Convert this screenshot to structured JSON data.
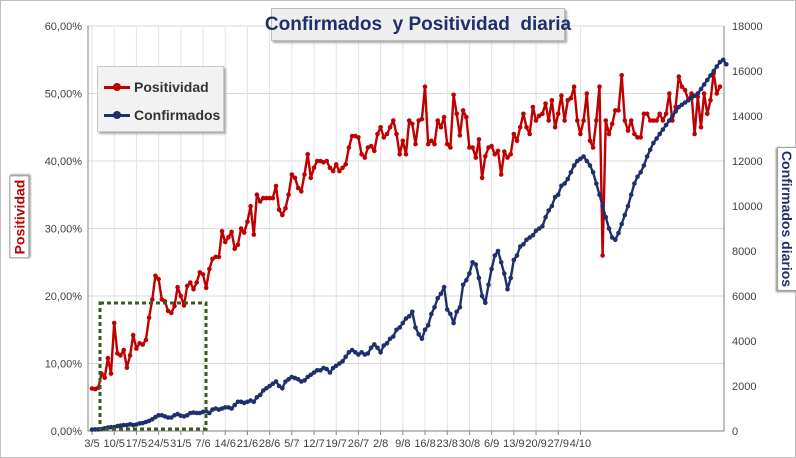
{
  "chart_data": {
    "type": "line",
    "title": "Confirmados  y Positividad  diaria",
    "ylabel_left": "Positividad",
    "ylabel_right": "Confirmados diarios",
    "x_tick_labels": [
      "3/5",
      "10/5",
      "17/5",
      "24/5",
      "31/5",
      "7/6",
      "14/6",
      "21/6",
      "28/6",
      "5/7",
      "12/7",
      "19/7",
      "26/7",
      "2/8",
      "9/8",
      "16/8",
      "23/8",
      "30/8",
      "6/9",
      "13/9",
      "20/9",
      "27/9",
      "4/10"
    ],
    "y_left_ticks": [
      "0,00%",
      "10,00%",
      "20,00%",
      "30,00%",
      "40,00%",
      "50,00%",
      "60,00%"
    ],
    "y_right_ticks": [
      "0",
      "2000",
      "4000",
      "6000",
      "8000",
      "10000",
      "12000",
      "14000",
      "16000",
      "18000"
    ],
    "ylim_left": [
      0,
      0.6
    ],
    "ylim_right": [
      0,
      18000
    ],
    "legend_position": "upper-left",
    "grid": true,
    "x_start": "3/5",
    "series": [
      {
        "name": "Positividad",
        "axis": "left",
        "color": "#c00000",
        "values": [
          0.063,
          0.062,
          0.064,
          0.085,
          0.079,
          0.108,
          0.085,
          0.16,
          0.115,
          0.112,
          0.12,
          0.094,
          0.112,
          0.142,
          0.122,
          0.13,
          0.128,
          0.135,
          0.168,
          0.195,
          0.23,
          0.225,
          0.195,
          0.192,
          0.178,
          0.175,
          0.185,
          0.213,
          0.2,
          0.186,
          0.215,
          0.22,
          0.21,
          0.22,
          0.235,
          0.232,
          0.212,
          0.24,
          0.255,
          0.258,
          0.258,
          0.296,
          0.28,
          0.287,
          0.295,
          0.27,
          0.276,
          0.3,
          0.294,
          0.31,
          0.333,
          0.291,
          0.35,
          0.34,
          0.345,
          0.345,
          0.345,
          0.345,
          0.363,
          0.328,
          0.32,
          0.33,
          0.35,
          0.38,
          0.375,
          0.36,
          0.355,
          0.38,
          0.41,
          0.375,
          0.39,
          0.4,
          0.4,
          0.398,
          0.4,
          0.39,
          0.385,
          0.395,
          0.385,
          0.39,
          0.395,
          0.42,
          0.437,
          0.437,
          0.435,
          0.41,
          0.405,
          0.42,
          0.422,
          0.415,
          0.44,
          0.45,
          0.435,
          0.44,
          0.45,
          0.46,
          0.44,
          0.41,
          0.43,
          0.41,
          0.46,
          0.455,
          0.425,
          0.46,
          0.462,
          0.51,
          0.425,
          0.43,
          0.425,
          0.46,
          0.45,
          0.465,
          0.425,
          0.42,
          0.498,
          0.47,
          0.438,
          0.475,
          0.465,
          0.42,
          0.42,
          0.405,
          0.432,
          0.375,
          0.407,
          0.42,
          0.422,
          0.41,
          0.415,
          0.38,
          0.414,
          0.405,
          0.41,
          0.44,
          0.43,
          0.45,
          0.47,
          0.45,
          0.44,
          0.48,
          0.46,
          0.467,
          0.47,
          0.485,
          0.46,
          0.49,
          0.45,
          0.47,
          0.497,
          0.46,
          0.49,
          0.493,
          0.51,
          0.46,
          0.44,
          0.46,
          0.5,
          0.43,
          0.42,
          0.46,
          0.51,
          0.26,
          0.46,
          0.44,
          0.455,
          0.475,
          0.475,
          0.527,
          0.46,
          0.445,
          0.46,
          0.44,
          0.435,
          0.435,
          0.47,
          0.47,
          0.46,
          0.46,
          0.46,
          0.47,
          0.46,
          0.47,
          0.5,
          0.46,
          0.48,
          0.525,
          0.51,
          0.505,
          0.49,
          0.5,
          0.44,
          0.495,
          0.45,
          0.5,
          0.47,
          0.49,
          0.53,
          0.5,
          0.51
        ]
      },
      {
        "name": "Confirmados",
        "axis": "right",
        "color": "#1f2f6b",
        "values": [
          60,
          70,
          70,
          90,
          120,
          150,
          170,
          170,
          220,
          240,
          260,
          260,
          300,
          260,
          290,
          340,
          350,
          400,
          450,
          520,
          620,
          700,
          700,
          650,
          600,
          600,
          700,
          750,
          680,
          650,
          700,
          800,
          820,
          800,
          800,
          850,
          880,
          800,
          950,
          1000,
          950,
          1000,
          1050,
          1050,
          1000,
          1150,
          1300,
          1300,
          1250,
          1300,
          1350,
          1300,
          1500,
          1600,
          1800,
          1900,
          2000,
          2100,
          2200,
          2000,
          1900,
          2200,
          2300,
          2400,
          2350,
          2300,
          2200,
          2250,
          2400,
          2500,
          2600,
          2700,
          2700,
          2800,
          2750,
          2600,
          2800,
          2900,
          3000,
          3100,
          3300,
          3500,
          3600,
          3500,
          3400,
          3500,
          3400,
          3450,
          3700,
          3850,
          3700,
          3500,
          3800,
          3900,
          4100,
          4200,
          4500,
          4600,
          4800,
          5000,
          5100,
          5300,
          4600,
          4300,
          4100,
          4500,
          4700,
          5200,
          5500,
          5900,
          6100,
          6400,
          5400,
          5200,
          4800,
          5300,
          5500,
          6500,
          6700,
          7000,
          7500,
          7400,
          6800,
          6000,
          5700,
          6500,
          7200,
          7800,
          8000,
          7500,
          7000,
          6300,
          6800,
          7600,
          7800,
          8200,
          8300,
          8500,
          8600,
          8700,
          8900,
          9000,
          9100,
          9500,
          9800,
          10000,
          10400,
          10500,
          10900,
          11000,
          11200,
          11500,
          11800,
          12000,
          12100,
          12200,
          12000,
          11800,
          11500,
          11000,
          10500,
          10000,
          9500,
          9000,
          8600,
          8500,
          8800,
          9200,
          9600,
          10000,
          10500,
          11000,
          11300,
          11500,
          11800,
          12200,
          12500,
          12800,
          13000,
          13200,
          13400,
          13600,
          13800,
          14000,
          14200,
          14400,
          14500,
          14600,
          14700,
          14800,
          14900,
          15000,
          15200,
          15400,
          15600,
          15800,
          16000,
          16200,
          16400,
          16500,
          16300
        ]
      }
    ]
  }
}
